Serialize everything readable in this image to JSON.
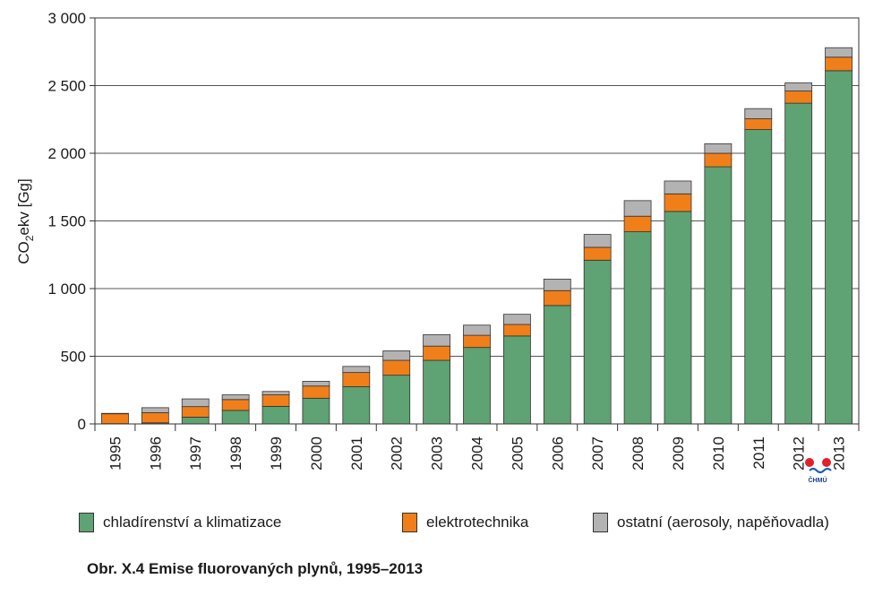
{
  "chart_data": {
    "type": "bar",
    "stacked": true,
    "title": "",
    "xlabel": "",
    "ylabel_main": "CO",
    "ylabel_sub": "2",
    "ylabel_rest": "ekv [Gg]",
    "ylim": [
      0,
      3000
    ],
    "yticks": [
      0,
      500,
      1000,
      1500,
      2000,
      2500,
      3000
    ],
    "ytick_labels": [
      "0",
      "500",
      "1 000",
      "1 500",
      "2 000",
      "2 500",
      "3 000"
    ],
    "grid": true,
    "categories": [
      "1995",
      "1996",
      "1997",
      "1998",
      "1999",
      "2000",
      "2001",
      "2002",
      "2003",
      "2004",
      "2005",
      "2006",
      "2007",
      "2008",
      "2009",
      "2010",
      "2011",
      "2012",
      "2013"
    ],
    "series": [
      {
        "name": "chladírenství a klimatizace",
        "color": "#5fa273",
        "values": [
          2,
          8,
          50,
          100,
          130,
          190,
          275,
          360,
          470,
          565,
          650,
          875,
          1210,
          1420,
          1570,
          1900,
          2175,
          2370,
          2610
        ]
      },
      {
        "name": "elektrotechnika",
        "color": "#f07f1a",
        "values": [
          73,
          75,
          78,
          80,
          85,
          90,
          105,
          110,
          105,
          90,
          85,
          110,
          95,
          115,
          130,
          100,
          80,
          90,
          100
        ]
      },
      {
        "name": "ostatní (aerosoly, napěňovadla)",
        "color": "#b3b3b3",
        "values": [
          3,
          37,
          57,
          35,
          25,
          35,
          45,
          70,
          85,
          75,
          75,
          85,
          95,
          115,
          95,
          70,
          75,
          60,
          70
        ]
      }
    ],
    "legend_position": "bottom"
  },
  "caption": "Obr. X.4  Emise fluorovaných plynů, 1995–2013",
  "logo": {
    "label": "ČHMÚ",
    "dot_color": "#e0202a",
    "wave_color": "#1a5fb4"
  }
}
